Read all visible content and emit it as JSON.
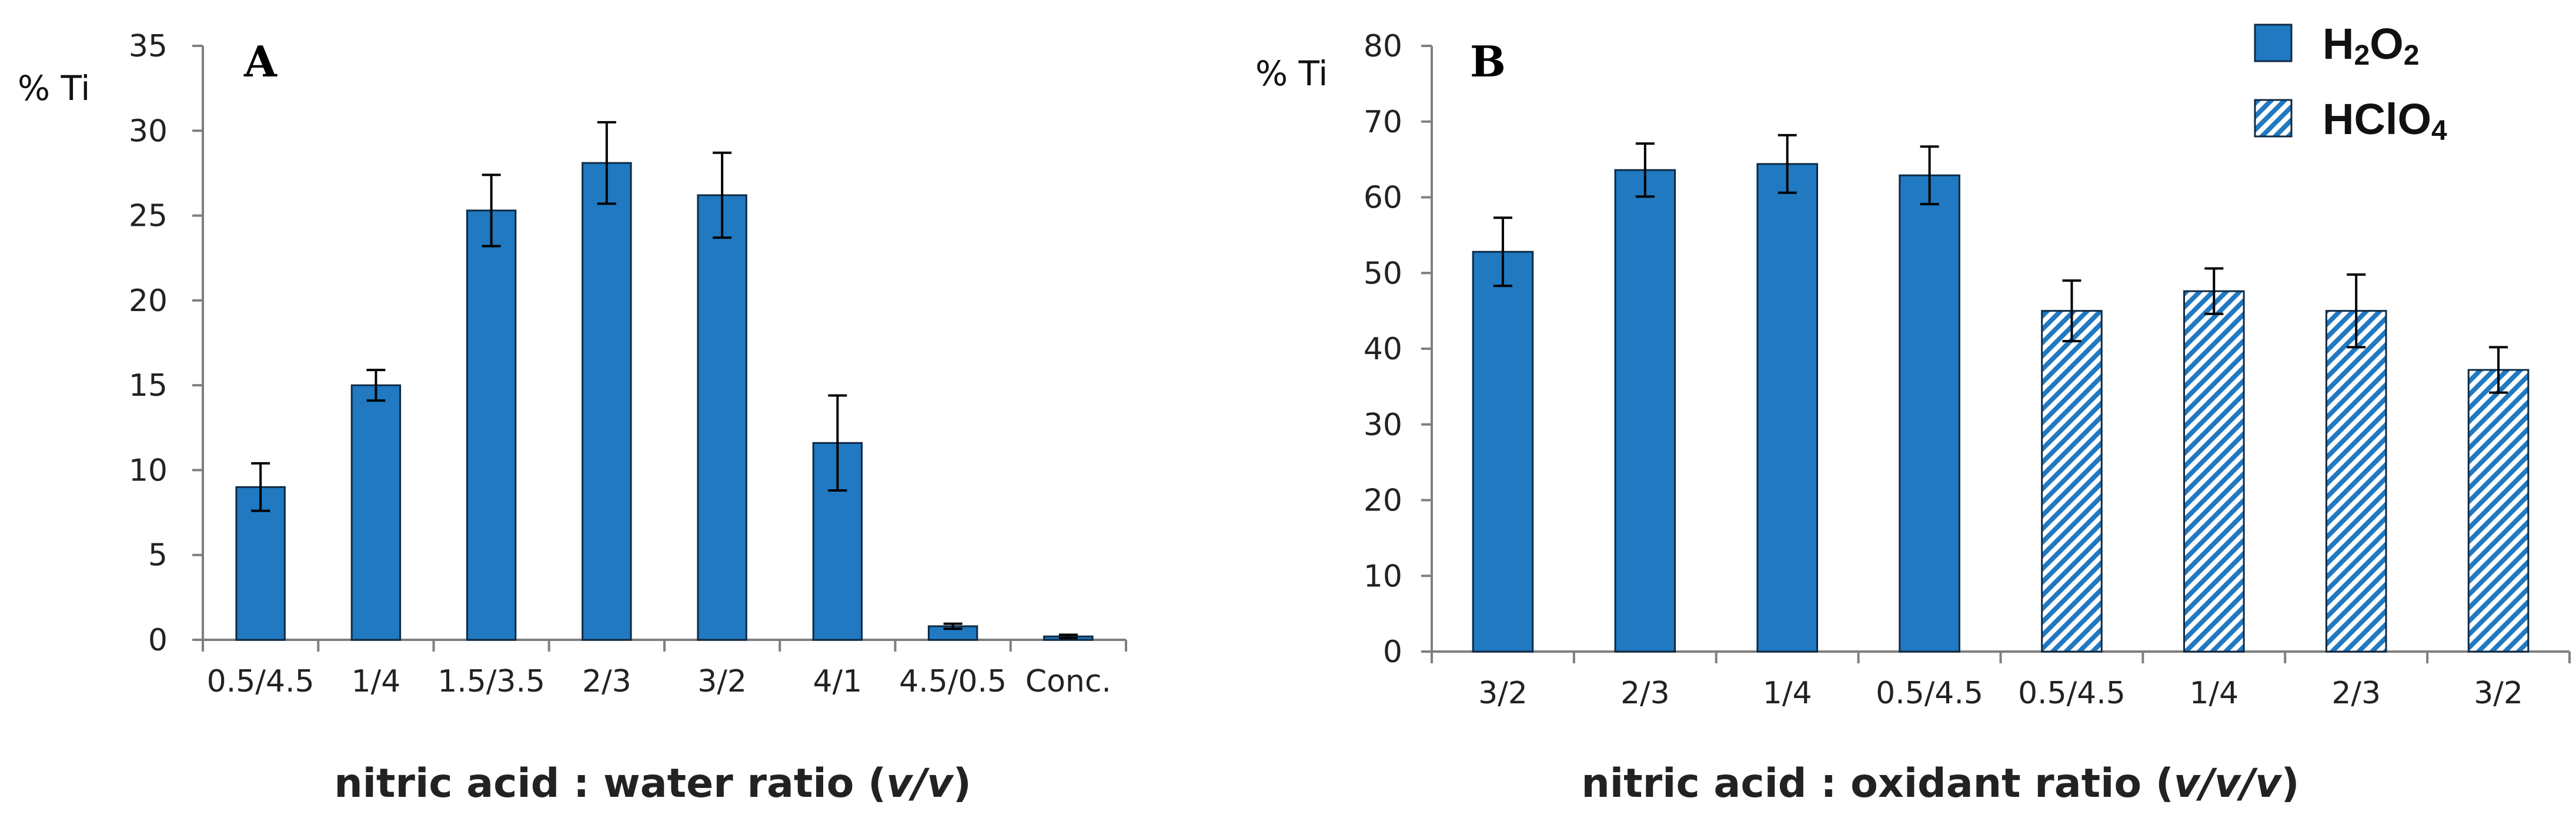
{
  "colors": {
    "bar": "#2079C1",
    "bar_stroke": "#0f2a44",
    "hatch_bg": "#ffffff",
    "axis": "#7f7f7f"
  },
  "chart_data": [
    {
      "type": "bar",
      "panel_label": "A",
      "title": "",
      "ylabel": "% Ti",
      "xlabel_pre": "nitric acid : water ratio (",
      "xlabel_em": "v/v",
      "xlabel_post": ")",
      "ylim": [
        0,
        35
      ],
      "yticks": [
        "0",
        "5",
        "10",
        "15",
        "20",
        "25",
        "30",
        "35"
      ],
      "categories": [
        "0.5/4.5",
        "1/4",
        "1.5/3.5",
        "2/3",
        "3/2",
        "4/1",
        "4.5/0.5",
        "Conc."
      ],
      "values": [
        9.0,
        15.0,
        25.3,
        28.1,
        26.2,
        11.6,
        0.8,
        0.2
      ],
      "errors": [
        1.4,
        0.9,
        2.1,
        2.4,
        2.5,
        2.8,
        0.15,
        0.1
      ],
      "patterns": [
        "solid",
        "solid",
        "solid",
        "solid",
        "solid",
        "solid",
        "solid",
        "solid"
      ]
    },
    {
      "type": "bar",
      "panel_label": "B",
      "title": "",
      "ylabel": "% Ti",
      "xlabel_pre": "nitric acid : oxidant ratio (",
      "xlabel_em": "v/v/v",
      "xlabel_post": ")",
      "ylim": [
        0,
        80
      ],
      "yticks": [
        "0",
        "10",
        "20",
        "30",
        "40",
        "50",
        "60",
        "70",
        "80"
      ],
      "categories": [
        "3/2",
        "2/3",
        "1/4",
        "0.5/4.5",
        "0.5/4.5",
        "1/4",
        "2/3",
        "3/2"
      ],
      "values": [
        52.8,
        63.6,
        64.4,
        62.9,
        45.0,
        47.6,
        45.0,
        37.2
      ],
      "errors": [
        4.5,
        3.5,
        3.8,
        3.8,
        4.0,
        3.0,
        4.8,
        3.0
      ],
      "patterns": [
        "solid",
        "solid",
        "solid",
        "solid",
        "hatch",
        "hatch",
        "hatch",
        "hatch"
      ],
      "legend": [
        {
          "pattern": "solid",
          "base": "H",
          "sub1": "2",
          "mid": "O",
          "sub2": "2"
        },
        {
          "pattern": "hatch",
          "base": "HClO",
          "sub1": "4",
          "mid": "",
          "sub2": ""
        }
      ]
    }
  ]
}
